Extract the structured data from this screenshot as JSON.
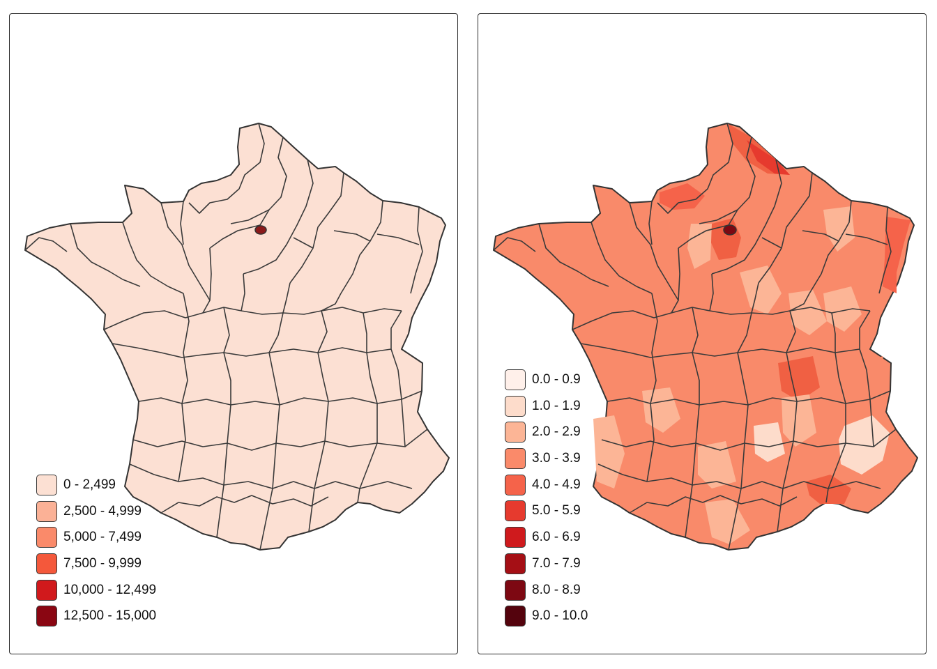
{
  "maps": [
    {
      "id": "left",
      "fill_default": "#fce0d3",
      "highlight_fill": "#8b1a1a",
      "legend": [
        {
          "label": "0 - 2,499",
          "color": "#fce0d3"
        },
        {
          "label": "2,500 - 4,999",
          "color": "#fbb196"
        },
        {
          "label": "5,000 - 7,499",
          "color": "#fa8a6a"
        },
        {
          "label": "7,500 - 9,999",
          "color": "#f4583b"
        },
        {
          "label": "10,000 - 12,499",
          "color": "#d1191c"
        },
        {
          "label": "12,500 - 15,000",
          "color": "#8a0612"
        }
      ]
    },
    {
      "id": "right",
      "fill_default": "#f98a6a",
      "legend": [
        {
          "label": "0.0 - 0.9",
          "color": "#fff0ea"
        },
        {
          "label": "1.0 - 1.9",
          "color": "#fddccb"
        },
        {
          "label": "2.0 - 2.9",
          "color": "#fcb596"
        },
        {
          "label": "3.0 - 3.9",
          "color": "#fa8a6a"
        },
        {
          "label": "4.0 - 4.9",
          "color": "#f5634a"
        },
        {
          "label": "5.0 - 5.9",
          "color": "#e63a2e"
        },
        {
          "label": "6.0 - 6.9",
          "color": "#cf1a1d"
        },
        {
          "label": "7.0 - 7.9",
          "color": "#a50f15"
        },
        {
          "label": "8.0 - 8.9",
          "color": "#7d0812"
        },
        {
          "label": "9.0 - 10.0",
          "color": "#54030d"
        }
      ]
    }
  ]
}
